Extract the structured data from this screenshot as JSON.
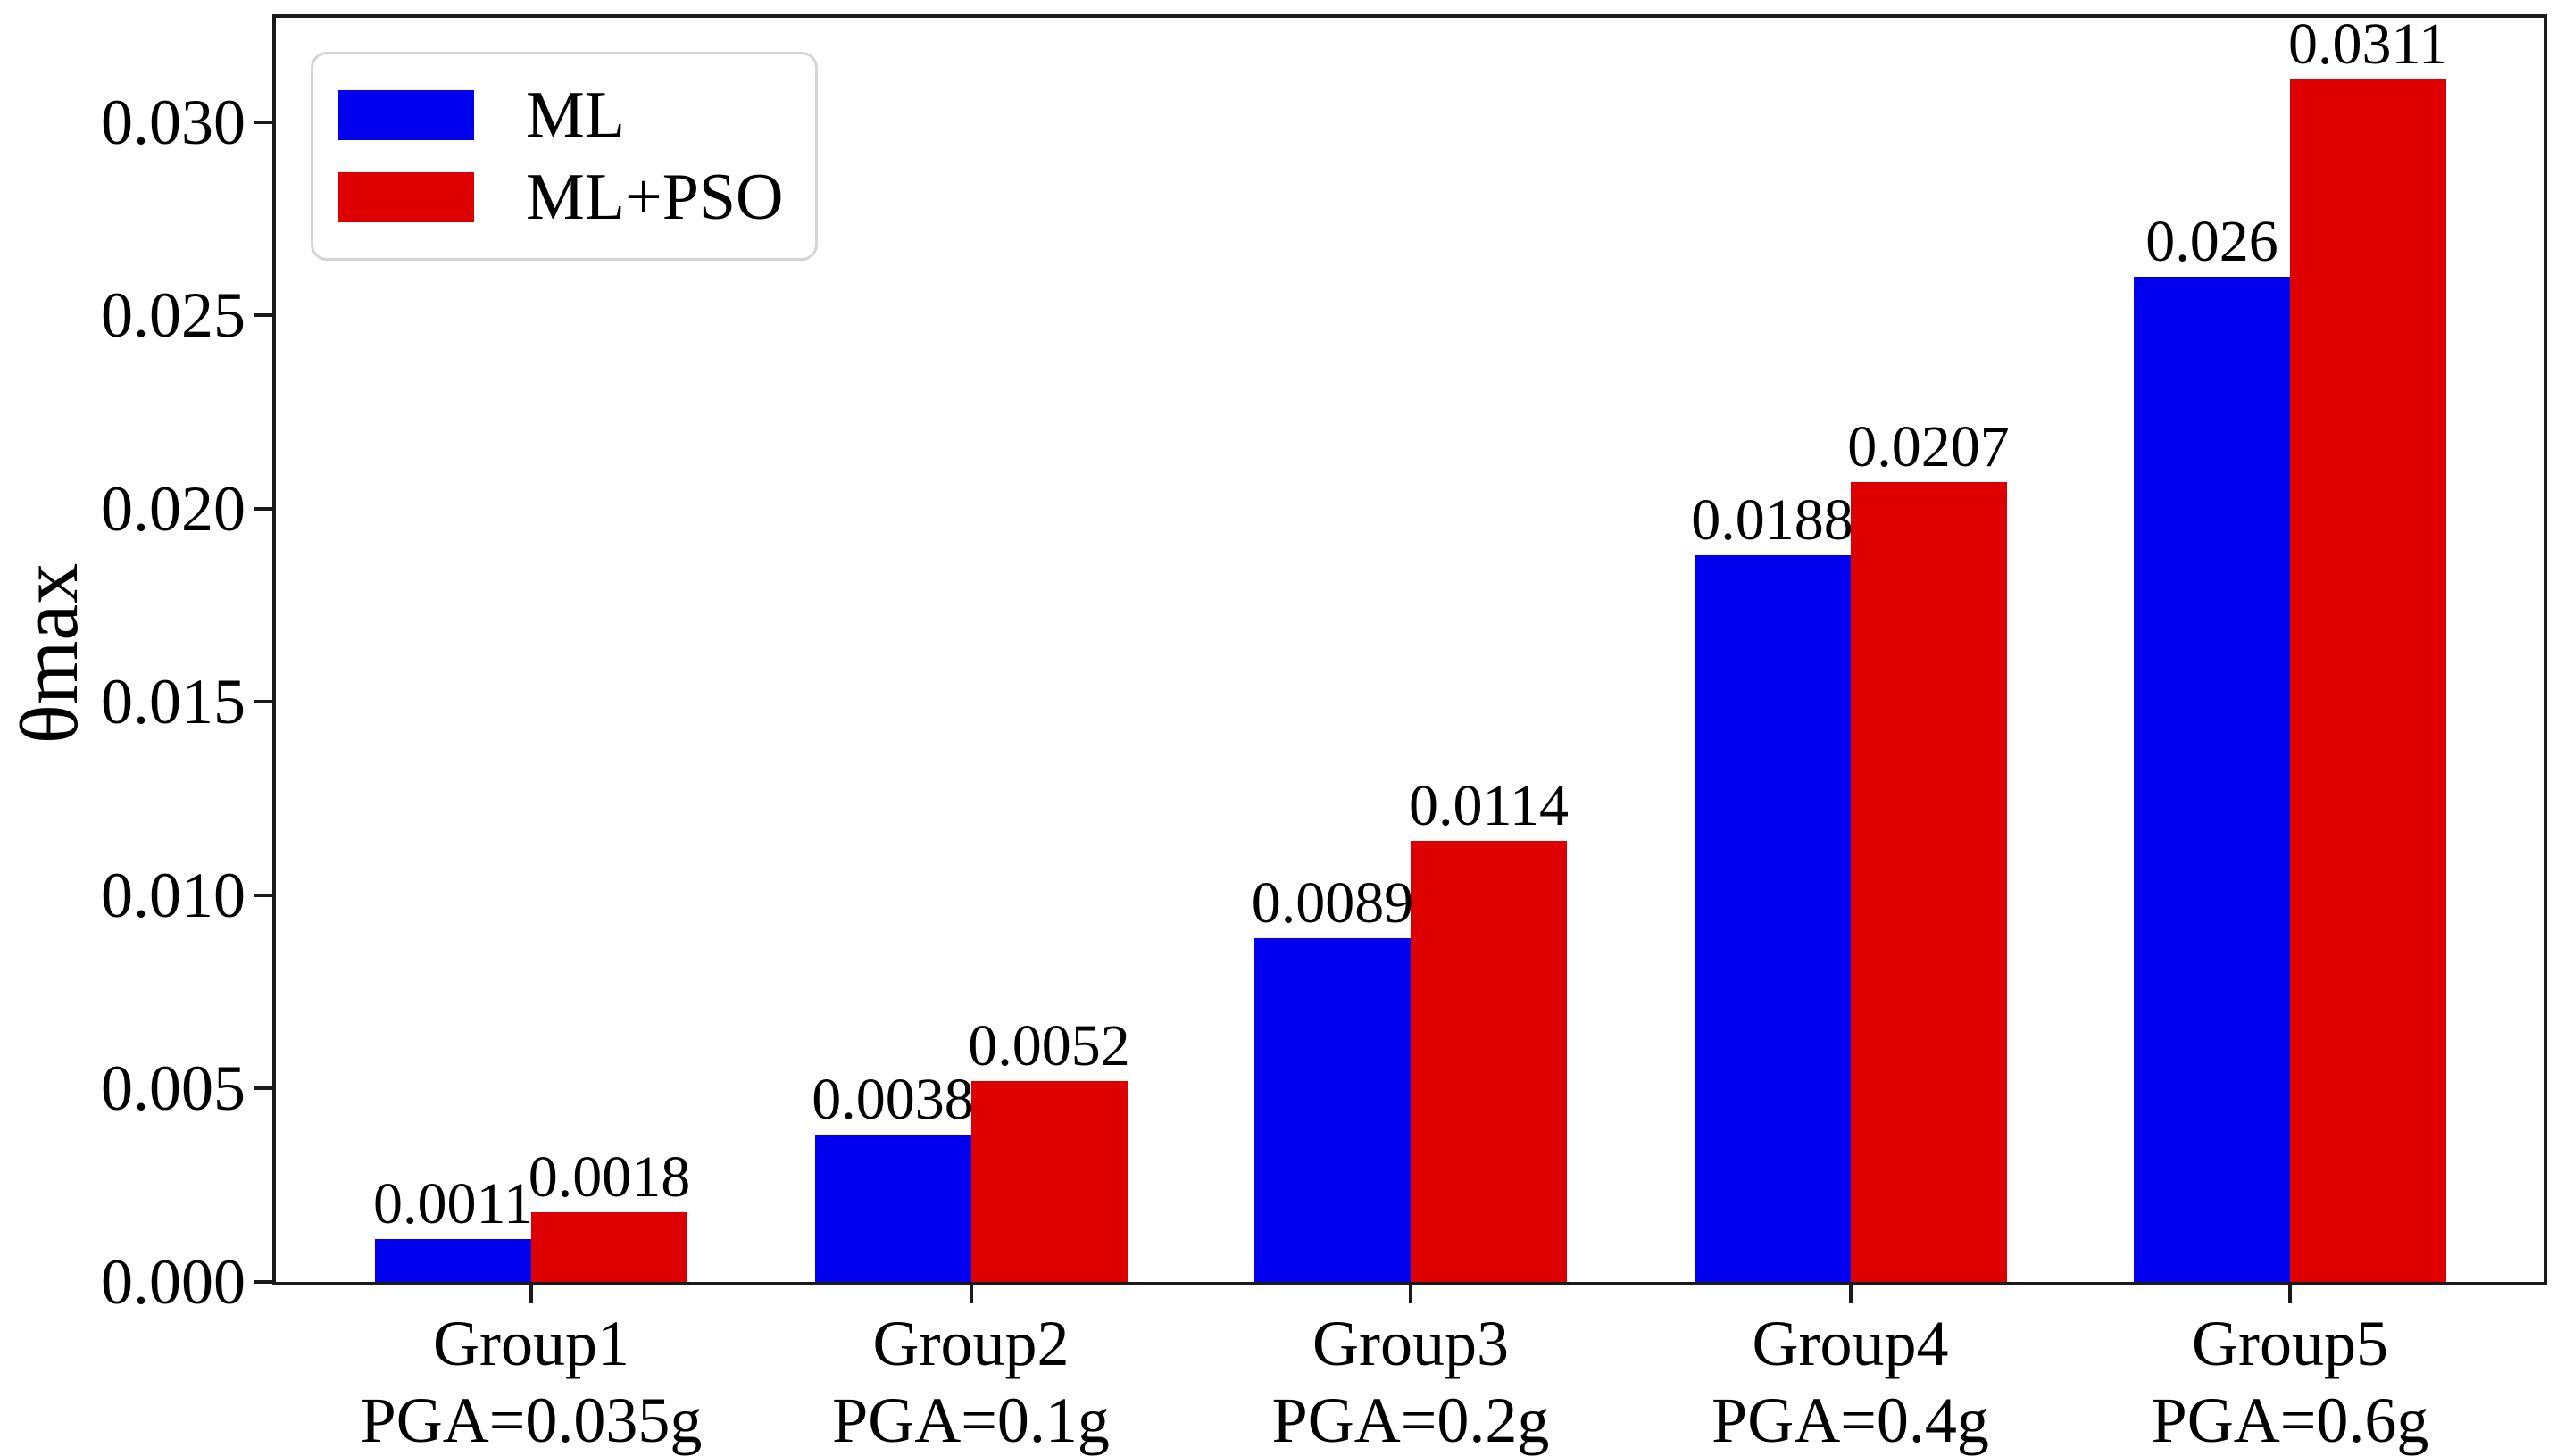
{
  "chart_data": {
    "type": "bar",
    "title": "",
    "xlabel": "",
    "ylabel": "θmax",
    "categories": [
      {
        "line1": "Group1",
        "line2": "PGA=0.035g"
      },
      {
        "line1": "Group2",
        "line2": "PGA=0.1g"
      },
      {
        "line1": "Group3",
        "line2": "PGA=0.2g"
      },
      {
        "line1": "Group4",
        "line2": "PGA=0.4g"
      },
      {
        "line1": "Group5",
        "line2": "PGA=0.6g"
      }
    ],
    "series": [
      {
        "name": "ML",
        "color": "#0000EE",
        "values": [
          0.0011,
          0.0038,
          0.0089,
          0.0188,
          0.026
        ],
        "value_labels": [
          "0.0011",
          "0.0038",
          "0.0089",
          "0.0188",
          "0.026"
        ]
      },
      {
        "name": "ML+PSO",
        "color": "#DE0000",
        "values": [
          0.0018,
          0.0052,
          0.0114,
          0.0207,
          0.0311
        ],
        "value_labels": [
          "0.0018",
          "0.0052",
          "0.0114",
          "0.0207",
          "0.0311"
        ]
      }
    ],
    "y_tick_labels": [
      "0.000",
      "0.005",
      "0.010",
      "0.015",
      "0.020",
      "0.025",
      "0.030"
    ],
    "y_tick_values": [
      0.0,
      0.005,
      0.01,
      0.015,
      0.02,
      0.025,
      0.03
    ],
    "ylim": [
      0,
      0.0327
    ],
    "grid": false,
    "legend_position": "upper-left",
    "axis_color": "#1a1a1a",
    "text_color": "#000000"
  }
}
